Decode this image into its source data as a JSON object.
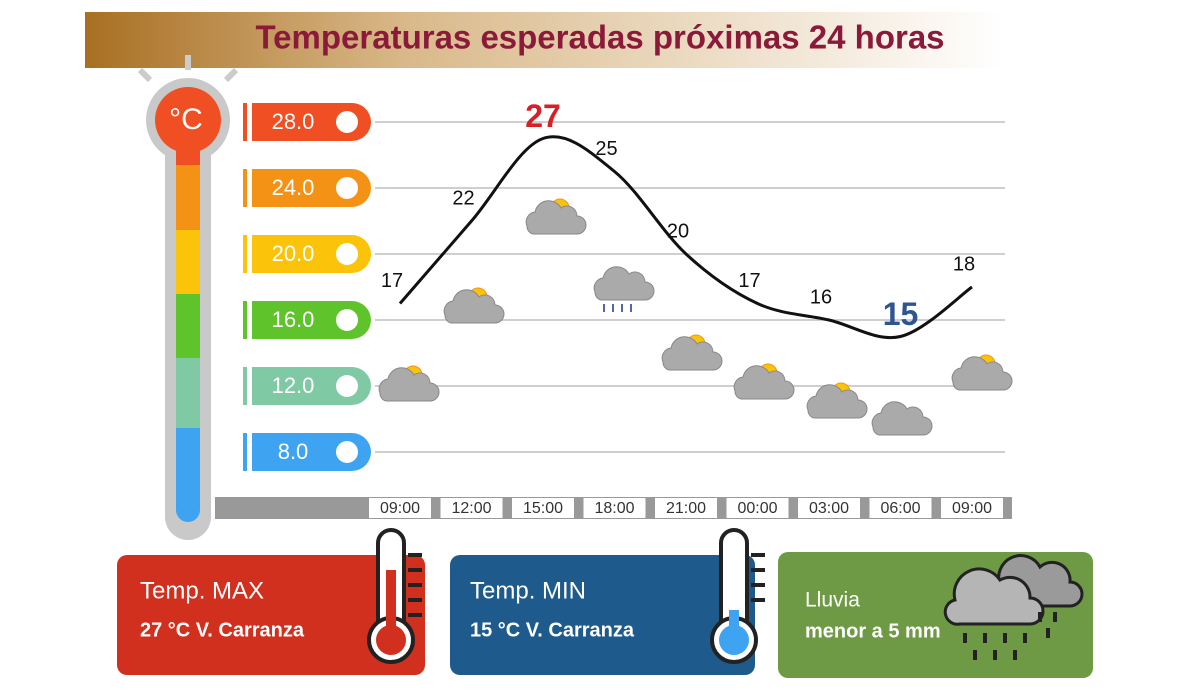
{
  "chart_data": {
    "type": "line",
    "title": "Temperaturas esperadas próximas 24 horas",
    "unit_badge": "°C",
    "categories": [
      "09:00",
      "12:00",
      "15:00",
      "18:00",
      "21:00",
      "00:00",
      "03:00",
      "06:00",
      "09:00"
    ],
    "values": [
      17,
      22,
      27,
      25,
      20,
      17,
      16,
      15,
      18
    ],
    "color": "#111111",
    "max_color": "#d81f26",
    "min_color": "#2e5590",
    "ylim": [
      8,
      28
    ],
    "yticks": [
      {
        "value": 28,
        "label": "28.0"
      },
      {
        "value": 24,
        "label": "24.0"
      },
      {
        "value": 20,
        "label": "20.0"
      },
      {
        "value": 16,
        "label": "16.0"
      },
      {
        "value": 12,
        "label": "12.0"
      },
      {
        "value": 8,
        "label": "8.0"
      }
    ],
    "ytick_colors": [
      "#f04e23",
      "#f39214",
      "#fcc30b",
      "#5fc42b",
      "#7fcaa5",
      "#3ea3f0"
    ],
    "grid": true
  },
  "cards": {
    "max": {
      "label": "Temp. MAX",
      "detail": "27 °C  V. Carranza"
    },
    "min": {
      "label": "Temp. MIN",
      "detail": "15 °C  V. Carranza"
    },
    "rain": {
      "label": "Lluvia",
      "detail": "menor a 5 mm"
    }
  }
}
